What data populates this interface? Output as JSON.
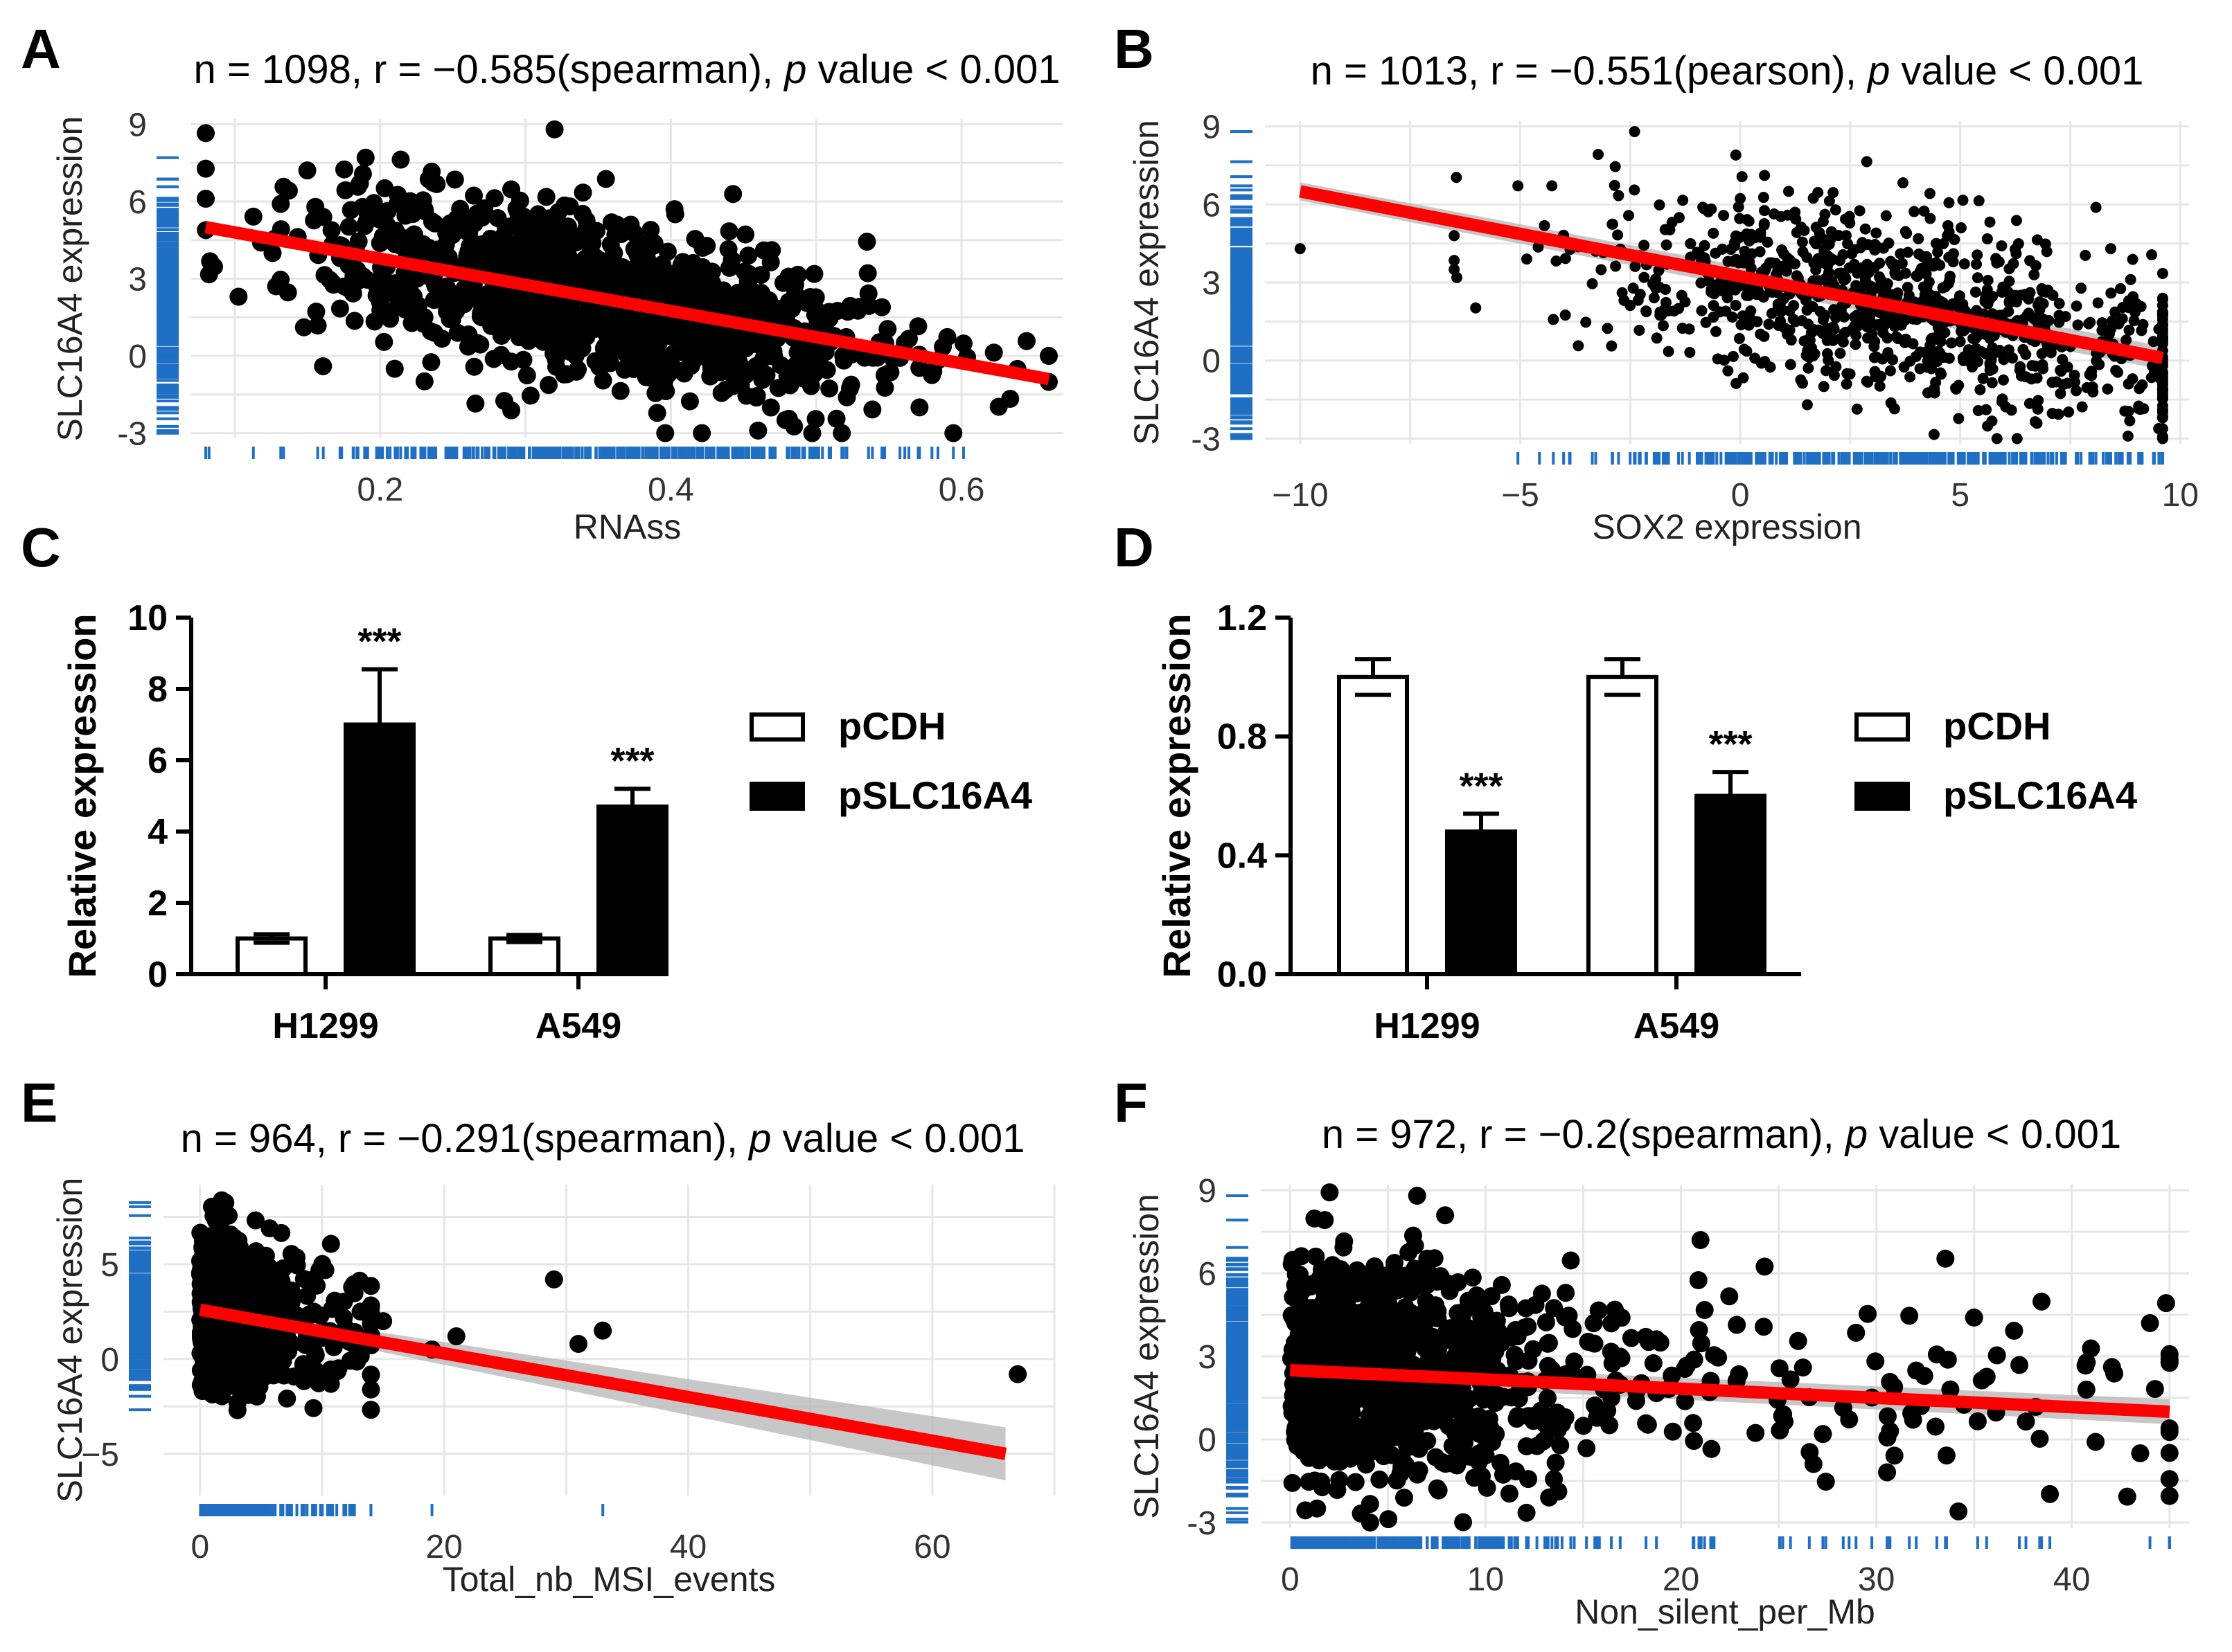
{
  "colors": {
    "regression": "#ff0000",
    "rug": "#1f6fc4",
    "points": "#000000",
    "ci": "#b4b4b4",
    "grid": "#e6e6e6"
  },
  "panels": {
    "A": {
      "letter": "A",
      "title_pre": "n = 1098, r = −0.585(spearman), ",
      "title_p": "p",
      "title_post": " value < 0.001",
      "xlabel": "RNAss",
      "ylabel": "SLC16A4 expression"
    },
    "B": {
      "letter": "B",
      "title_pre": "n = 1013, r = −0.551(pearson), ",
      "title_p": "p",
      "title_post": " value < 0.001",
      "xlabel": "SOX2 expression",
      "ylabel": "SLC16A4 expression"
    },
    "C": {
      "letter": "C",
      "ylabel": "Relative expression",
      "legend": [
        "pCDH",
        "pSLC16A4"
      ]
    },
    "D": {
      "letter": "D",
      "ylabel": "Relative expression",
      "legend": [
        "pCDH",
        "pSLC16A4"
      ]
    },
    "E": {
      "letter": "E",
      "title_pre": "n = 964, r = −0.291(spearman), ",
      "title_p": "p",
      "title_post": " value < 0.001",
      "xlabel": "Total_nb_MSI_events",
      "ylabel": "SLC16A4 expression"
    },
    "F": {
      "letter": "F",
      "title_pre": "n = 972, r = −0.2(spearman), ",
      "title_p": "p",
      "title_post": " value < 0.001",
      "xlabel": "Non_silent_per_Mb",
      "ylabel": "SLC16A4 expression"
    }
  },
  "chart_data": [
    {
      "panel": "A",
      "type": "scatter",
      "n": 1098,
      "r": -0.585,
      "method": "spearman",
      "xlabel": "RNAss",
      "ylabel": "SLC16A4 expression",
      "xlim": [
        0.07,
        0.67
      ],
      "ylim": [
        -3.2,
        9.2
      ],
      "xticks": [
        0.2,
        0.4,
        0.6
      ],
      "xtick_labels": [
        "0.2",
        "0.4",
        "0.6"
      ],
      "yticks": [
        -3,
        0,
        3,
        6,
        9
      ],
      "ytick_labels": [
        "-3",
        "0",
        "3",
        "6",
        "9"
      ],
      "fit": {
        "x": [
          0.08,
          0.66
        ],
        "y": [
          5.0,
          -0.9
        ]
      },
      "cloud": {
        "x_center": 0.35,
        "x_sd": 0.1,
        "x_min": 0.08,
        "x_max": 0.66,
        "intercept": 5.8,
        "slope": -10.2,
        "resid_sd": 1.6,
        "count": 1098
      },
      "outliers": [
        [
          0.19,
          7.7
        ],
        [
          0.32,
          8.8
        ],
        [
          0.66,
          0.0
        ],
        [
          0.46,
          -2.9
        ],
        [
          0.21,
          -0.5
        ]
      ]
    },
    {
      "panel": "B",
      "type": "scatter",
      "n": 1013,
      "r": -0.551,
      "method": "pearson",
      "xlabel": "SOX2 expression",
      "ylabel": "SLC16A4 expression",
      "xlim": [
        -10.8,
        10.2
      ],
      "ylim": [
        -3.2,
        9.2
      ],
      "xticks": [
        -10,
        -5,
        0,
        5,
        10
      ],
      "xtick_labels": [
        "−10",
        "−5",
        "0",
        "5",
        "10"
      ],
      "yticks": [
        -3,
        0,
        3,
        6,
        9
      ],
      "ytick_labels": [
        "-3",
        "0",
        "3",
        "6",
        "9"
      ],
      "fit": {
        "x": [
          -10,
          9.6
        ],
        "y": [
          6.5,
          0.1
        ]
      },
      "ci": true,
      "cloud": {
        "x_center": 3.5,
        "x_sd": 3.6,
        "x_min": -6.5,
        "x_max": 9.6,
        "intercept": 3.25,
        "slope": -0.33,
        "resid_sd": 1.6,
        "count": 1013
      },
      "outliers": [
        [
          -10,
          4.3
        ],
        [
          -2.4,
          8.8
        ],
        [
          -0.1,
          7.9
        ],
        [
          -6.5,
          3.5
        ]
      ]
    },
    {
      "panel": "C",
      "type": "bar",
      "categories": [
        "H1299",
        "A549"
      ],
      "series": [
        {
          "name": "pCDH",
          "values": [
            1.0,
            1.0
          ],
          "errors": [
            0.12,
            0.1
          ]
        },
        {
          "name": "pSLC16A4",
          "values": [
            7.0,
            4.7
          ],
          "errors": [
            1.55,
            0.5
          ]
        }
      ],
      "ylabel": "Relative expression",
      "ylim": [
        0,
        10
      ],
      "yticks": [
        0,
        2,
        4,
        6,
        8,
        10
      ],
      "ytick_labels": [
        "0",
        "2",
        "4",
        "6",
        "8",
        "10"
      ],
      "significance": [
        "***",
        "***"
      ]
    },
    {
      "panel": "D",
      "type": "bar",
      "categories": [
        "H1299",
        "A549"
      ],
      "series": [
        {
          "name": "pCDH",
          "values": [
            1.0,
            1.0
          ],
          "errors": [
            0.06,
            0.06
          ]
        },
        {
          "name": "pSLC16A4",
          "values": [
            0.48,
            0.6
          ],
          "errors": [
            0.06,
            0.08
          ]
        }
      ],
      "ylabel": "Relative expression",
      "ylim": [
        0,
        1.2
      ],
      "yticks": [
        0,
        0.4,
        0.8,
        1.2
      ],
      "ytick_labels": [
        "0.0",
        "0.4",
        "0.8",
        "1.2"
      ],
      "significance": [
        "***",
        "***"
      ]
    },
    {
      "panel": "E",
      "type": "scatter",
      "n": 964,
      "r": -0.291,
      "method": "spearman",
      "xlabel": "Total_nb_MSI_events",
      "ylabel": "SLC16A4 expression",
      "xlim": [
        -3,
        70
      ],
      "ylim": [
        -7.2,
        9.2
      ],
      "xticks": [
        0,
        20,
        40,
        60
      ],
      "xtick_labels": [
        "0",
        "20",
        "40",
        "60"
      ],
      "yticks": [
        -5,
        0,
        5
      ],
      "ytick_labels": [
        "−5",
        "0",
        "5"
      ],
      "fit": {
        "x": [
          0,
          66
        ],
        "y": [
          2.6,
          -5.0
        ]
      },
      "ci": true,
      "cloud": {
        "x_center": 2.5,
        "x_sd": 3.0,
        "x_min": 0,
        "x_max": 14,
        "intercept": 2.8,
        "slope": -0.12,
        "resid_sd": 1.9,
        "count": 964
      },
      "outliers": [
        [
          29,
          4.2
        ],
        [
          31,
          0.8
        ],
        [
          33,
          1.5
        ],
        [
          67,
          -0.8
        ],
        [
          15,
          2.0
        ],
        [
          19,
          0.5
        ],
        [
          21,
          1.2
        ]
      ]
    },
    {
      "panel": "F",
      "type": "scatter",
      "n": 972,
      "r": -0.2,
      "method": "spearman",
      "xlabel": "Non_silent_per_Mb",
      "ylabel": "SLC16A4 expression",
      "xlim": [
        -1.5,
        46
      ],
      "ylim": [
        -3.2,
        9.2
      ],
      "xticks": [
        0,
        10,
        20,
        30,
        40
      ],
      "xtick_labels": [
        "0",
        "10",
        "20",
        "30",
        "40"
      ],
      "yticks": [
        -3,
        0,
        3,
        6,
        9
      ],
      "ytick_labels": [
        "-3",
        "0",
        "3",
        "6",
        "9"
      ],
      "fit": {
        "x": [
          0,
          45
        ],
        "y": [
          2.5,
          1.0
        ]
      },
      "ci": true,
      "cloud": {
        "x_center": 6.0,
        "x_sd": 6.5,
        "x_min": 0,
        "x_max": 45,
        "intercept": 2.7,
        "slope": -0.03,
        "resid_sd": 2.0,
        "count": 972
      },
      "outliers": [
        [
          6.5,
          8.8
        ],
        [
          21,
          7.2
        ],
        [
          35,
          4.4
        ],
        [
          44,
          4.2
        ],
        [
          43.5,
          -0.5
        ],
        [
          45,
          0.4
        ]
      ]
    }
  ]
}
